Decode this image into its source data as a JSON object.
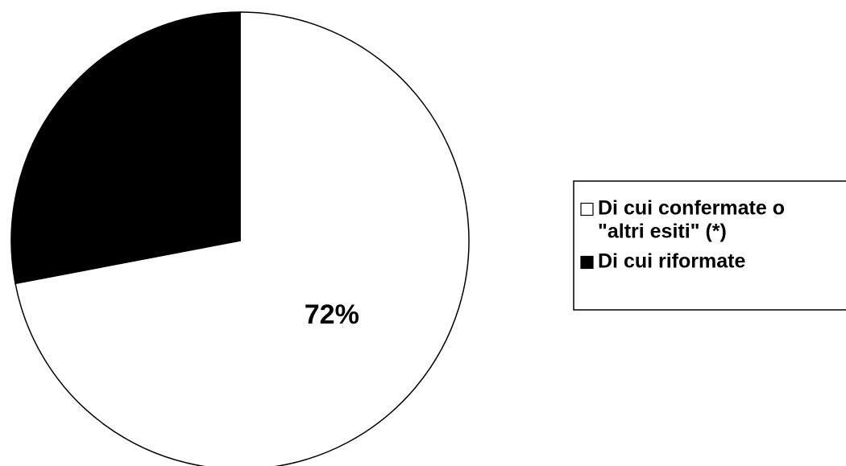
{
  "chart_data": {
    "type": "pie",
    "slices": [
      {
        "label_lines": [
          "Di cui confermate o",
          "\"altri esiti\" (*)"
        ],
        "value": 72,
        "data_label": "72%",
        "color": "#ffffff"
      },
      {
        "label_lines": [
          "Di cui riformate"
        ],
        "value": 28,
        "data_label": "",
        "color": "#000000"
      }
    ],
    "legend_position": "right",
    "start_angle": "12 o'clock",
    "direction": "clockwise"
  }
}
